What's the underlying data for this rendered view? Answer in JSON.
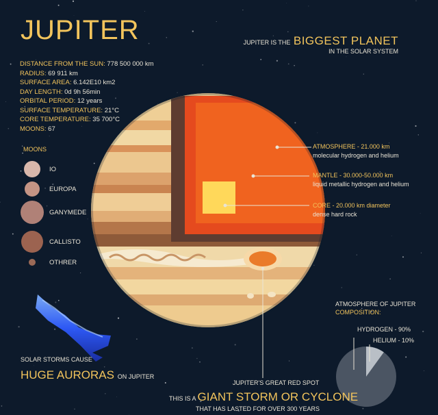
{
  "title": "JUPITER",
  "headline": {
    "lead": "JUPITER IS THE",
    "highlight": "BIGGEST PLANET",
    "sub": "IN THE SOLAR SYSTEM"
  },
  "stats": [
    {
      "key": "DISTANCE FROM THE SUN:",
      "value": "778 500 000 km"
    },
    {
      "key": "RADIUS:",
      "value": "69 911 km"
    },
    {
      "key": "SURFACE AREA:",
      "value": "6.142E10  km2"
    },
    {
      "key": "DAY LENGTH:",
      "value": "0d 9h 56min"
    },
    {
      "key": "ORBITAL PERIOD:",
      "value": "12 years"
    },
    {
      "key": "SURFACE TEMPERATURE:",
      "value": "21°C"
    },
    {
      "key": "CORE TEMPERATURE:",
      "value": "35 700°C"
    },
    {
      "key": "MOONS:",
      "value": "67"
    }
  ],
  "moons": {
    "title": "MOONS",
    "items": [
      "IO",
      "EUROPA",
      "GANYMEDE",
      "CALLISTO",
      "OTHRER"
    ]
  },
  "layers": [
    {
      "name": "ATMOSPHERE -",
      "size": "21.000 km",
      "desc": "molecular hydrogen and helium"
    },
    {
      "name": "MANTLE -",
      "size": "30.000-50.000 km",
      "desc": "liquid metallic hydrogen and helium"
    },
    {
      "name": "CORE -",
      "size": "20.000 km diameter",
      "desc": "dense hard rock"
    }
  ],
  "aurora": {
    "small": "SOLAR STORMS CAUSE",
    "big": "HUGE AURORAS",
    "tail": "ON JUPITER"
  },
  "red_spot": {
    "small": "JUPITER'S GREAT RED SPOT",
    "lead": "THIS IS A",
    "big": "GIANT STORM OR CYCLONE",
    "sub": "THAT HAS LASTED FOR OVER 300 YEARS"
  },
  "composition": {
    "title_line1": "ATMOSPHERE OF JUPITER",
    "title_line2": "COMPOSITION:",
    "items": [
      {
        "label": "HYDROGEN - 90%",
        "value": 90
      },
      {
        "label": "HELIUM - 10%",
        "value": 10
      }
    ]
  },
  "colors": {
    "background": "#0d1a2b",
    "accent": "#f2c45c",
    "text": "#e9e4d6",
    "aurora": "#2f6bff"
  }
}
